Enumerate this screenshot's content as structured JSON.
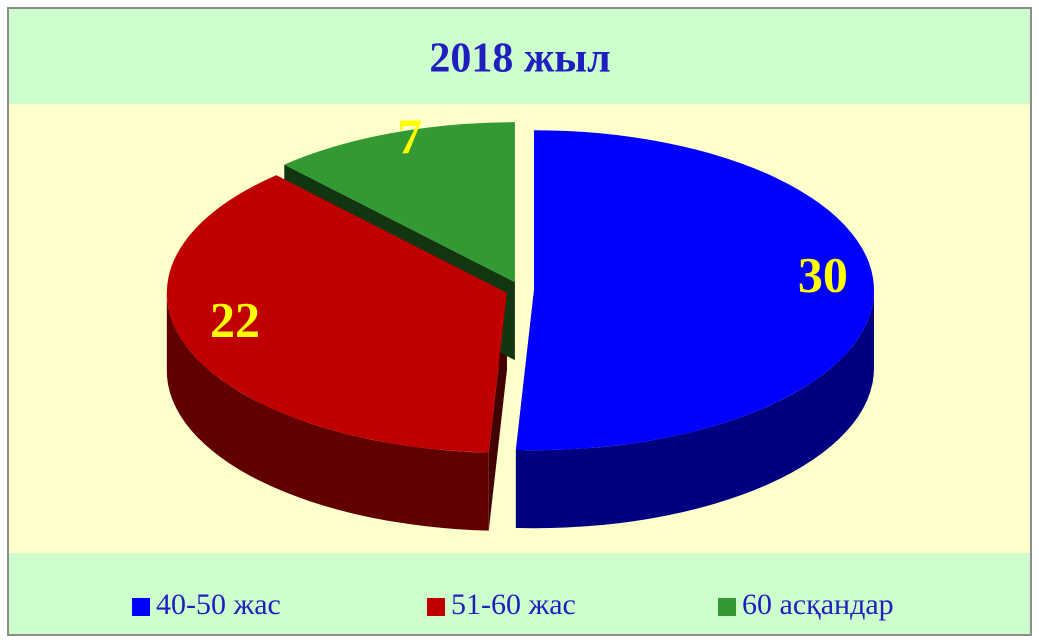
{
  "chart_data": {
    "type": "pie",
    "title": "2018 жыл",
    "categories": [
      "40-50 жас",
      "51-60 жас",
      "60 асқандар"
    ],
    "values": [
      30,
      22,
      7
    ],
    "colors": [
      "#0000ff",
      "#c00000",
      "#339933"
    ],
    "legend": "bottom"
  }
}
